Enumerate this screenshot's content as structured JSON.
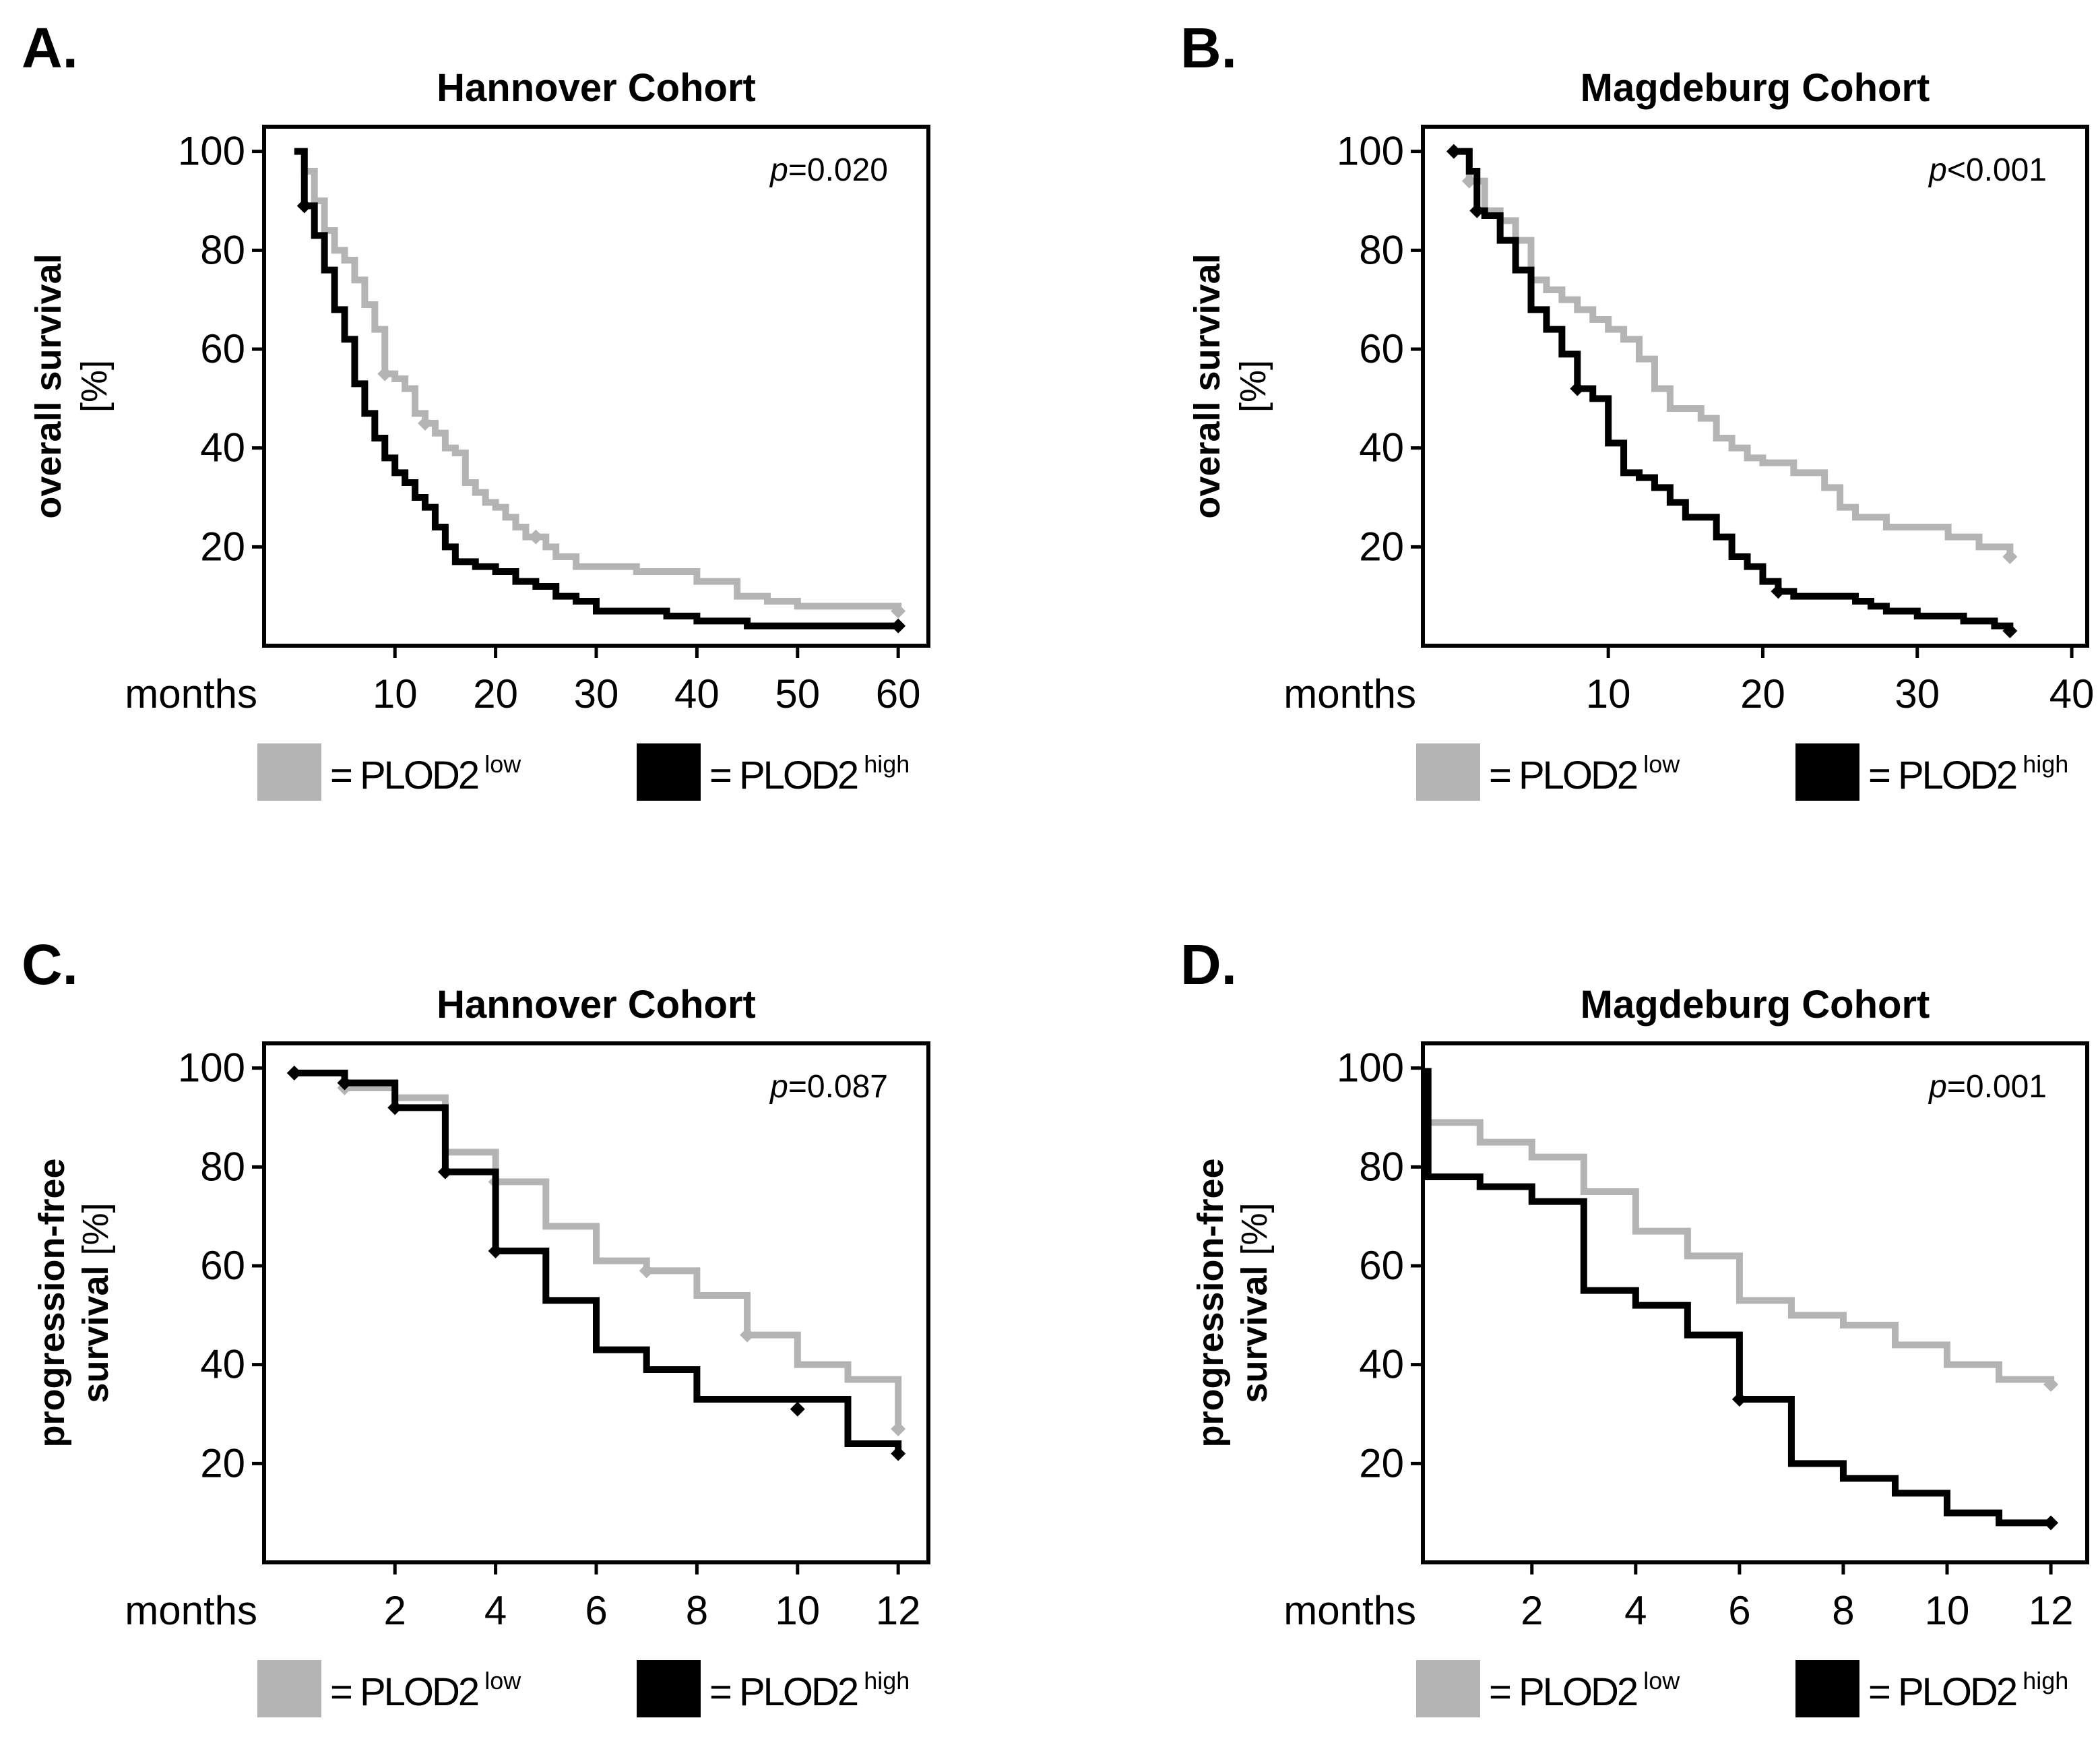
{
  "colors": {
    "low": "#b4b4b4",
    "high": "#000000"
  },
  "legend": {
    "low_prefix": "= PLOD2",
    "low_sup": "low",
    "high_prefix": "= PLOD2",
    "high_sup": "high"
  },
  "chart_data": [
    {
      "panel": "A.",
      "type": "line",
      "title": "Hannover Cohort",
      "ylabel_bold": "overall survival",
      "ylabel_plain": "[%]",
      "xlabel": "months",
      "p_label": "p",
      "p_value": "=0.020",
      "xlim": [
        -3,
        63
      ],
      "ylim": [
        0,
        105
      ],
      "xticks": [
        10,
        20,
        30,
        40,
        50,
        60
      ],
      "yticks": [
        20,
        40,
        60,
        80,
        100
      ],
      "series": [
        {
          "name": "PLOD2 low",
          "color_key": "low",
          "points": [
            [
              0,
              100
            ],
            [
              1,
              96
            ],
            [
              2,
              90
            ],
            [
              3,
              84
            ],
            [
              4,
              80
            ],
            [
              5,
              78
            ],
            [
              6,
              74
            ],
            [
              7,
              69
            ],
            [
              8,
              64
            ],
            [
              9,
              55
            ],
            [
              10,
              54
            ],
            [
              11,
              52
            ],
            [
              12,
              47
            ],
            [
              13,
              45
            ],
            [
              14,
              43
            ],
            [
              15,
              40
            ],
            [
              16,
              39
            ],
            [
              17,
              33
            ],
            [
              18,
              31
            ],
            [
              19,
              29
            ],
            [
              20,
              28
            ],
            [
              21,
              26
            ],
            [
              22,
              24
            ],
            [
              23,
              22
            ],
            [
              25,
              20
            ],
            [
              26,
              18
            ],
            [
              28,
              16
            ],
            [
              34,
              15
            ],
            [
              40,
              13
            ],
            [
              44,
              10
            ],
            [
              47,
              9
            ],
            [
              50,
              8
            ],
            [
              60,
              7
            ]
          ],
          "censored": [
            [
              9,
              55
            ],
            [
              13,
              45
            ],
            [
              24,
              22
            ],
            [
              60,
              7
            ]
          ]
        },
        {
          "name": "PLOD2 high",
          "color_key": "high",
          "points": [
            [
              0,
              100
            ],
            [
              1,
              89
            ],
            [
              2,
              83
            ],
            [
              3,
              76
            ],
            [
              4,
              68
            ],
            [
              5,
              62
            ],
            [
              6,
              53
            ],
            [
              7,
              47
            ],
            [
              8,
              42
            ],
            [
              9,
              38
            ],
            [
              10,
              35
            ],
            [
              11,
              33
            ],
            [
              12,
              30
            ],
            [
              13,
              28
            ],
            [
              14,
              24
            ],
            [
              15,
              20
            ],
            [
              16,
              17
            ],
            [
              18,
              16
            ],
            [
              20,
              15
            ],
            [
              22,
              13
            ],
            [
              24,
              12
            ],
            [
              26,
              10
            ],
            [
              28,
              9
            ],
            [
              30,
              7
            ],
            [
              33,
              7
            ],
            [
              37,
              6
            ],
            [
              40,
              5
            ],
            [
              45,
              4
            ],
            [
              60,
              4
            ]
          ],
          "censored": [
            [
              1,
              89
            ],
            [
              60,
              4
            ]
          ]
        }
      ]
    },
    {
      "panel": "B.",
      "type": "line",
      "title": "Magdeburg Cohort",
      "ylabel_bold": "overall survival",
      "ylabel_plain": "[%]",
      "xlabel": "months",
      "p_label": "p",
      "p_value": "<0.001",
      "xlim": [
        -2,
        41
      ],
      "ylim": [
        0,
        105
      ],
      "xticks": [
        10,
        20,
        30,
        40
      ],
      "yticks": [
        20,
        40,
        60,
        80,
        100
      ],
      "series": [
        {
          "name": "PLOD2 low",
          "color_key": "low",
          "points": [
            [
              0,
              100
            ],
            [
              1,
              94
            ],
            [
              2,
              88
            ],
            [
              3,
              86
            ],
            [
              4,
              82
            ],
            [
              5,
              74
            ],
            [
              6,
              72
            ],
            [
              7,
              70
            ],
            [
              8,
              68
            ],
            [
              9,
              66
            ],
            [
              10,
              64
            ],
            [
              11,
              62
            ],
            [
              12,
              58
            ],
            [
              13,
              52
            ],
            [
              14,
              48
            ],
            [
              16,
              46
            ],
            [
              17,
              42
            ],
            [
              18,
              40
            ],
            [
              19,
              38
            ],
            [
              20,
              37
            ],
            [
              22,
              35
            ],
            [
              24,
              32
            ],
            [
              25,
              28
            ],
            [
              26,
              26
            ],
            [
              28,
              24
            ],
            [
              32,
              22
            ],
            [
              34,
              20
            ],
            [
              36,
              18
            ]
          ],
          "censored": [
            [
              1,
              94
            ],
            [
              36,
              18
            ]
          ]
        },
        {
          "name": "PLOD2 high",
          "color_key": "high",
          "points": [
            [
              0,
              100
            ],
            [
              1,
              96
            ],
            [
              1.5,
              88
            ],
            [
              2,
              87
            ],
            [
              3,
              82
            ],
            [
              4,
              76
            ],
            [
              5,
              68
            ],
            [
              6,
              64
            ],
            [
              7,
              59
            ],
            [
              8,
              52
            ],
            [
              9,
              50
            ],
            [
              10,
              41
            ],
            [
              11,
              35
            ],
            [
              12,
              34
            ],
            [
              13,
              32
            ],
            [
              14,
              29
            ],
            [
              15,
              26
            ],
            [
              17,
              22
            ],
            [
              18,
              18
            ],
            [
              19,
              16
            ],
            [
              20,
              13
            ],
            [
              21,
              11
            ],
            [
              22,
              10
            ],
            [
              26,
              9
            ],
            [
              27,
              8
            ],
            [
              28,
              7
            ],
            [
              30,
              6
            ],
            [
              33,
              5
            ],
            [
              35,
              4
            ],
            [
              36,
              3
            ]
          ],
          "censored": [
            [
              0,
              100
            ],
            [
              1.5,
              88
            ],
            [
              8,
              52
            ],
            [
              21,
              11
            ],
            [
              36,
              3
            ]
          ]
        }
      ]
    },
    {
      "panel": "C.",
      "type": "line",
      "title": "Hannover Cohort",
      "ylabel_bold": "progression-free",
      "ylabel_bold2": "survival",
      "ylabel_plain": "[%]",
      "xlabel": "months",
      "p_label": "p",
      "p_value": "=0.087",
      "xlim": [
        -0.6,
        12.6
      ],
      "ylim": [
        0,
        105
      ],
      "xticks": [
        2,
        4,
        6,
        8,
        10,
        12
      ],
      "yticks": [
        20,
        40,
        60,
        80,
        100
      ],
      "series": [
        {
          "name": "PLOD2 low",
          "color_key": "low",
          "points": [
            [
              0,
              99
            ],
            [
              1,
              96
            ],
            [
              2,
              94
            ],
            [
              3,
              83
            ],
            [
              4,
              77
            ],
            [
              5,
              68
            ],
            [
              6,
              61
            ],
            [
              7,
              59
            ],
            [
              8,
              54
            ],
            [
              9,
              46
            ],
            [
              10,
              40
            ],
            [
              11,
              37
            ],
            [
              12,
              27
            ]
          ],
          "censored": [
            [
              0,
              99
            ],
            [
              1,
              96
            ],
            [
              4,
              77
            ],
            [
              7,
              59
            ],
            [
              9,
              46
            ],
            [
              12,
              27
            ]
          ]
        },
        {
          "name": "PLOD2 high",
          "color_key": "high",
          "points": [
            [
              0,
              99
            ],
            [
              1,
              97
            ],
            [
              2,
              92
            ],
            [
              3,
              79
            ],
            [
              4,
              63
            ],
            [
              5,
              53
            ],
            [
              6,
              43
            ],
            [
              7,
              39
            ],
            [
              8,
              33
            ],
            [
              11,
              24
            ],
            [
              12,
              22
            ]
          ],
          "censored": [
            [
              0,
              99
            ],
            [
              1,
              97
            ],
            [
              2,
              92
            ],
            [
              3,
              79
            ],
            [
              4,
              63
            ],
            [
              10,
              31
            ],
            [
              12,
              22
            ]
          ]
        }
      ]
    },
    {
      "panel": "D.",
      "type": "line",
      "title": "Magdeburg Cohort",
      "ylabel_bold": "progression-free",
      "ylabel_bold2": "survival",
      "ylabel_plain": "[%]",
      "xlabel": "months",
      "p_label": "p",
      "p_value": "=0.001",
      "xlim": [
        -0.1,
        12.7
      ],
      "ylim": [
        0,
        105
      ],
      "xticks": [
        2,
        4,
        6,
        8,
        10,
        12
      ],
      "yticks": [
        20,
        40,
        60,
        80,
        100
      ],
      "series": [
        {
          "name": "PLOD2 low",
          "color_key": "low",
          "points": [
            [
              0,
              89
            ],
            [
              1,
              85
            ],
            [
              2,
              82
            ],
            [
              3,
              75
            ],
            [
              4,
              67
            ],
            [
              5,
              62
            ],
            [
              6,
              53
            ],
            [
              7,
              50
            ],
            [
              8,
              48
            ],
            [
              9,
              44
            ],
            [
              10,
              40
            ],
            [
              11,
              37
            ],
            [
              12,
              36
            ]
          ],
          "censored": [
            [
              12,
              36
            ]
          ]
        },
        {
          "name": "PLOD2 high",
          "color_key": "high",
          "points": [
            [
              0,
              100
            ],
            [
              0,
              78
            ],
            [
              1,
              76
            ],
            [
              2,
              73
            ],
            [
              3,
              55
            ],
            [
              4,
              52
            ],
            [
              5,
              46
            ],
            [
              6,
              33
            ],
            [
              7,
              20
            ],
            [
              8,
              17
            ],
            [
              9,
              14
            ],
            [
              10,
              10
            ],
            [
              11,
              8
            ],
            [
              12,
              8
            ]
          ],
          "censored": [
            [
              6,
              33
            ],
            [
              12,
              8
            ]
          ]
        }
      ]
    }
  ]
}
